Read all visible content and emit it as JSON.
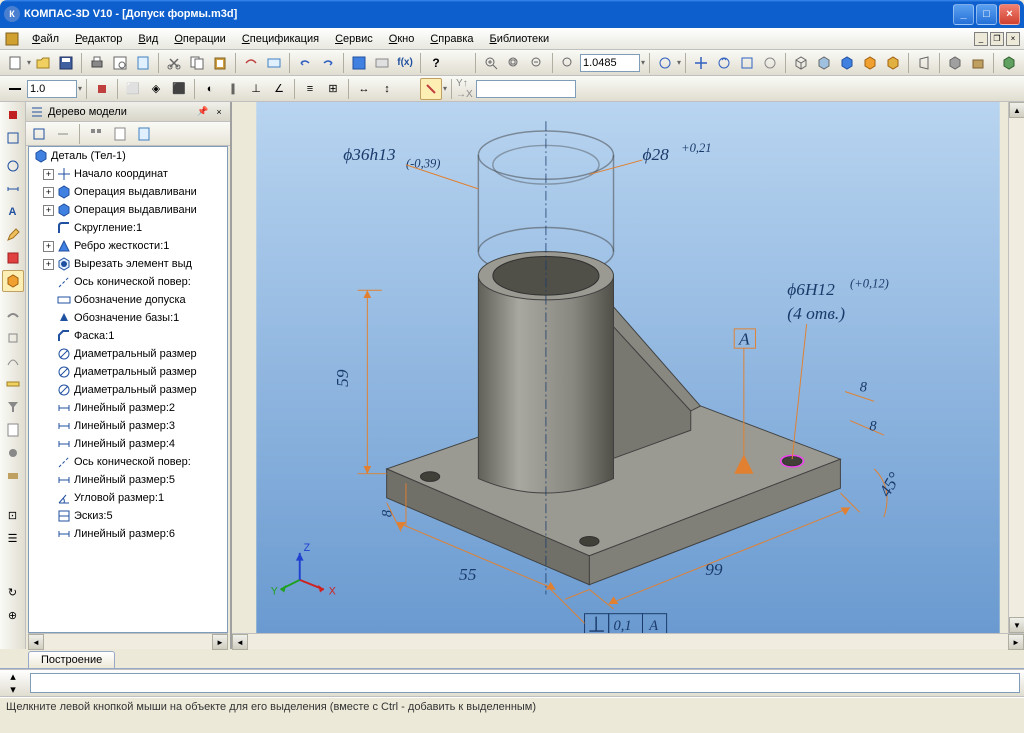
{
  "window": {
    "title": "КОМПАС-3D V10  - [Допуск формы.m3d]",
    "min": "_",
    "max": "□",
    "close": "×"
  },
  "menu": {
    "items": [
      "Файл",
      "Редактор",
      "Вид",
      "Операции",
      "Спецификация",
      "Сервис",
      "Окно",
      "Справка",
      "Библиотеки"
    ]
  },
  "toolbar1": {
    "zoom_value": "1.0485"
  },
  "toolbar2": {
    "line_width": "1.0"
  },
  "tree": {
    "title": "Дерево модели",
    "root": "Деталь (Тел-1)",
    "items": [
      {
        "label": "Начало координат",
        "expandable": true,
        "icon": "origin"
      },
      {
        "label": "Операция выдавливани",
        "expandable": true,
        "icon": "extrude"
      },
      {
        "label": "Операция выдавливани",
        "expandable": true,
        "icon": "extrude"
      },
      {
        "label": "Скругление:1",
        "expandable": false,
        "icon": "fillet"
      },
      {
        "label": "Ребро жесткости:1",
        "expandable": true,
        "icon": "rib"
      },
      {
        "label": "Вырезать элемент выд",
        "expandable": true,
        "icon": "cut"
      },
      {
        "label": "Ось конической повер:",
        "expandable": false,
        "icon": "axis"
      },
      {
        "label": "Обозначение допуска",
        "expandable": false,
        "icon": "tol"
      },
      {
        "label": "Обозначение базы:1",
        "expandable": false,
        "icon": "datum"
      },
      {
        "label": "Фаска:1",
        "expandable": false,
        "icon": "chamfer"
      },
      {
        "label": "Диаметральный размер",
        "expandable": false,
        "icon": "diam"
      },
      {
        "label": "Диаметральный размер",
        "expandable": false,
        "icon": "diam"
      },
      {
        "label": "Диаметральный размер",
        "expandable": false,
        "icon": "diam"
      },
      {
        "label": "Линейный размер:2",
        "expandable": false,
        "icon": "ldim"
      },
      {
        "label": "Линейный размер:3",
        "expandable": false,
        "icon": "ldim"
      },
      {
        "label": "Линейный размер:4",
        "expandable": false,
        "icon": "ldim"
      },
      {
        "label": "Ось конической повер:",
        "expandable": false,
        "icon": "axis"
      },
      {
        "label": "Линейный размер:5",
        "expandable": false,
        "icon": "ldim"
      },
      {
        "label": "Угловой размер:1",
        "expandable": false,
        "icon": "adim"
      },
      {
        "label": "Эскиз:5",
        "expandable": false,
        "icon": "sketch"
      },
      {
        "label": "Линейный размер:6",
        "expandable": false,
        "icon": "ldim"
      }
    ]
  },
  "tab": {
    "label": "Построение"
  },
  "status": {
    "text": "Щелкните левой кнопкой мыши на объекте для его выделения (вместе с Ctrl - добавить к выделенным)"
  },
  "model": {
    "background": {
      "top": "#b8d4f0",
      "bottom": "#6a9ad0"
    },
    "part_color": "#8a8a88",
    "dim_color": "#e08030",
    "text_color": "#1a3a6a",
    "dimensions": {
      "d1": "ϕ36h13",
      "d1_tol": "(-0,39)",
      "d2": "ϕ28",
      "d2_tol": "+0,21",
      "d3": "ϕ6H12",
      "d3_tol": "(+0,12)",
      "d3_note": "(4 отв.)",
      "h": "59",
      "w": "55",
      "l": "99",
      "t": "8",
      "t2": "8",
      "t3": "8",
      "ang": "45°",
      "tol_val": "0,1",
      "datum": "А",
      "datum2": "А"
    },
    "axes": {
      "x": "X",
      "y": "Y",
      "z": "Z"
    }
  }
}
